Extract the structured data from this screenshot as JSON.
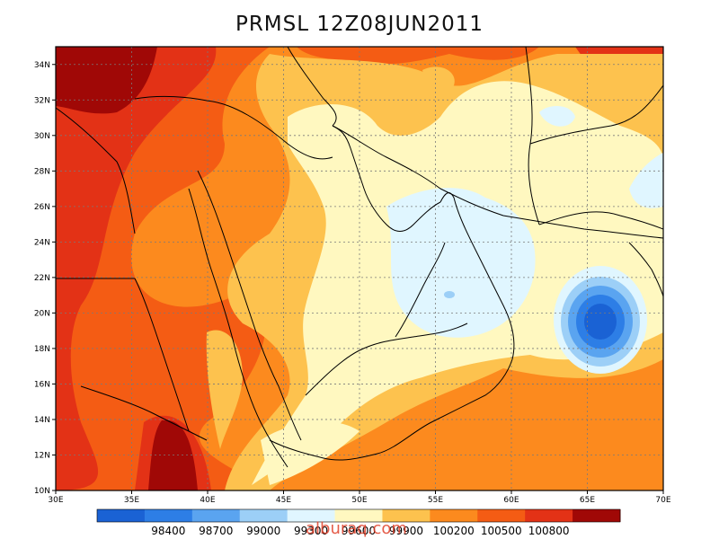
{
  "title": "PRMSL 12Z08JUN2011",
  "watermark": "alburaq.com",
  "longitude_labels": [
    "30E",
    "35E",
    "40E",
    "45E",
    "50E",
    "55E",
    "60E",
    "65E",
    "70E"
  ],
  "latitude_labels": [
    "10N",
    "12N",
    "14N",
    "16N",
    "18N",
    "20N",
    "22N",
    "24N",
    "26N",
    "28N",
    "30N",
    "32N",
    "34N"
  ],
  "colorbar": {
    "labels": [
      "98400",
      "98700",
      "99000",
      "99300",
      "99600",
      "99900",
      "100200",
      "100500",
      "100800"
    ],
    "colors": [
      "#1a62d4",
      "#2d7ee6",
      "#5aa4f0",
      "#9ccff7",
      "#e0f6ff",
      "#fff8c0",
      "#fdc24e",
      "#fc8a1e",
      "#f45c14",
      "#e33216",
      "#a00806"
    ]
  },
  "palette": {
    "very_high": "#a00806",
    "high": "#e33216",
    "upper": "#f45c14",
    "mid": "#fc8a1e",
    "lower": "#fdc24e",
    "light": "#fff8c0",
    "pale_blue": "#e0f6ff",
    "blue1": "#9ccff7",
    "blue2": "#5aa4f0",
    "blue3": "#2d7ee6",
    "blue4": "#1a62d4"
  }
}
